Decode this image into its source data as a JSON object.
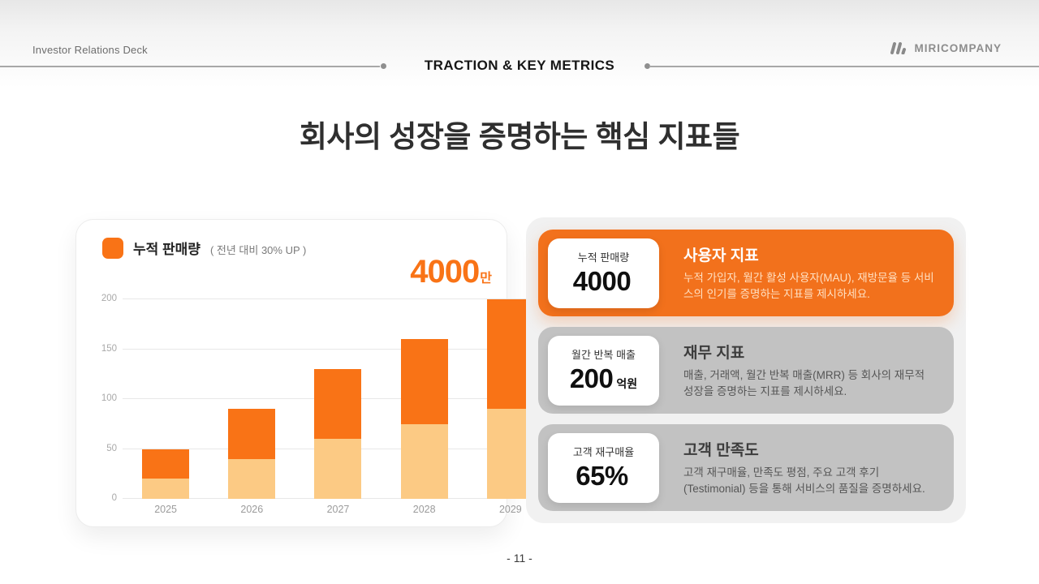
{
  "header": {
    "deck_label": "Investor Relations Deck",
    "section_title": "TRACTION & KEY METRICS",
    "brand_name": "MIRICOMPANY"
  },
  "main_title": "회사의 성장을 증명하는 핵심 지표들",
  "chart_card": {
    "legend_label": "누적 판매량",
    "legend_note": "( 전년 대비 30% UP )",
    "highlight_value": "4000",
    "highlight_unit": "만"
  },
  "chart_data": {
    "type": "bar",
    "stacked": true,
    "title": "누적 판매량 ( 전년 대비 30% UP )",
    "categories": [
      "2025",
      "2026",
      "2027",
      "2028",
      "2029"
    ],
    "series": [
      {
        "name": "bottom-segment",
        "color": "#fcca84",
        "values": [
          20,
          40,
          60,
          75,
          90
        ]
      },
      {
        "name": "top-segment",
        "color": "#f97316",
        "values": [
          30,
          50,
          70,
          85,
          110
        ]
      }
    ],
    "totals": [
      50,
      90,
      130,
      160,
      200
    ],
    "yticks": [
      0,
      50,
      100,
      150,
      200
    ],
    "ylim": [
      0,
      200
    ],
    "grid": true,
    "legend_position": "top-left",
    "annotation": "4000만"
  },
  "metrics": {
    "cards": [
      {
        "badge_label": "누적 판매량",
        "badge_value": "4000",
        "badge_unit": "",
        "title": "사용자 지표",
        "description": "누적 가입자, 월간 활성 사용자(MAU), 재방문율 등 서비스의 인기를 증명하는 지표를 제시하세요."
      },
      {
        "badge_label": "월간 반복 매출",
        "badge_value": "200",
        "badge_unit": "억원",
        "title": "재무 지표",
        "description": "매출, 거래액, 월간 반복 매출(MRR) 등 회사의 재무적 성장을 증명하는 지표를 제시하세요."
      },
      {
        "badge_label": "고객 재구매율",
        "badge_value": "65%",
        "badge_unit": "",
        "title": "고객 만족도",
        "description": "고객 재구매율, 만족도 평점, 주요 고객 후기 (Testimonial) 등을 통해 서비스의 품질을 증명하세요."
      }
    ]
  },
  "footer": {
    "page_number": "- 11 -"
  },
  "colors": {
    "accent_orange": "#f2711c",
    "bar_orange": "#f97316",
    "bar_peach": "#fcca84",
    "card_gray": "#c2c2c2",
    "panel_gray": "#f1f1f1"
  }
}
